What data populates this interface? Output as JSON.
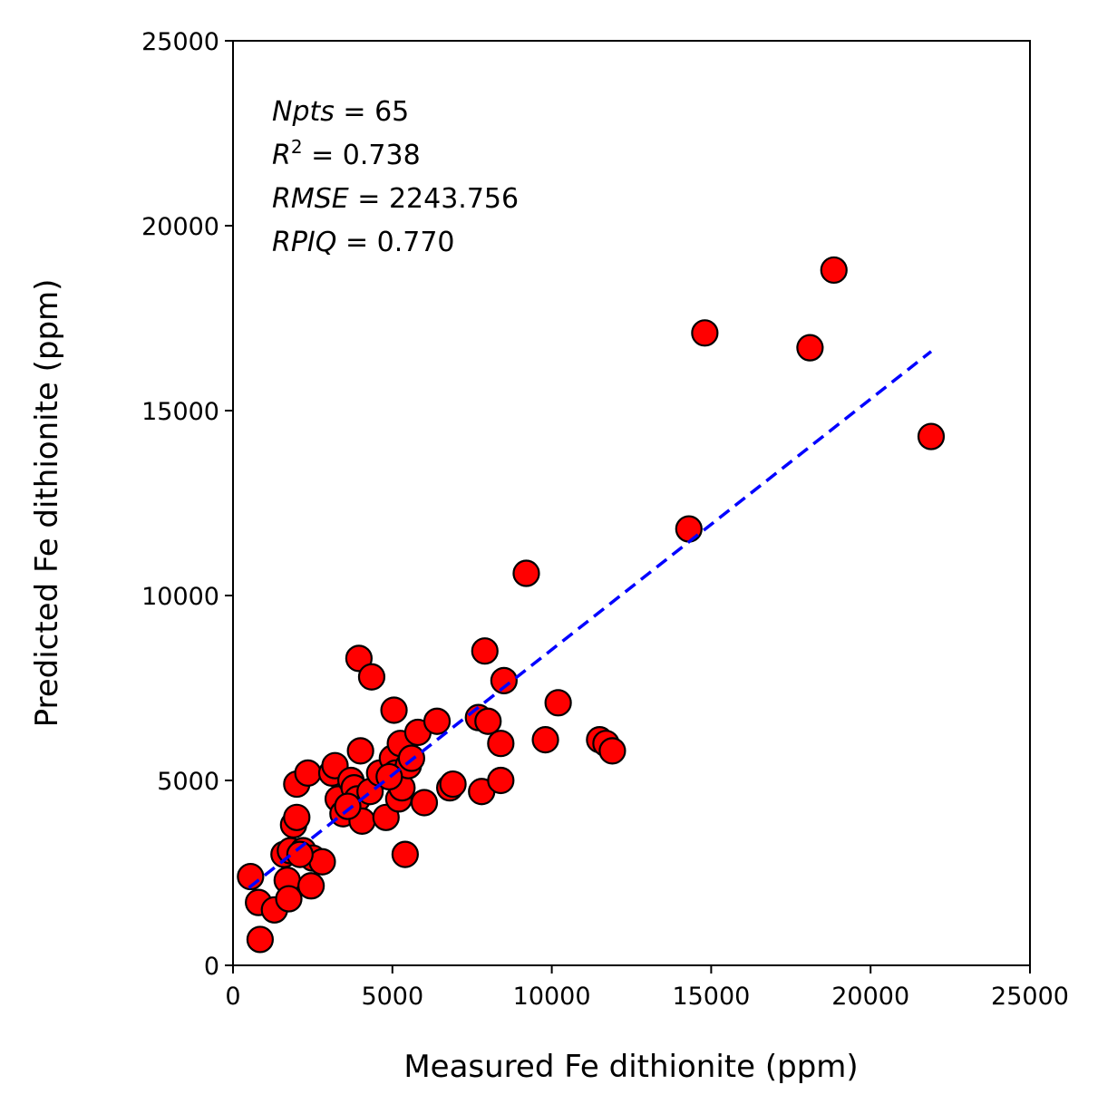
{
  "chart_data": {
    "type": "scatter",
    "xlabel": "Measured Fe dithionite (ppm)",
    "ylabel": "Predicted Fe dithionite (ppm)",
    "xlim": [
      0,
      25000
    ],
    "ylim": [
      0,
      25000
    ],
    "xticks": [
      "0",
      "5000",
      "10000",
      "15000",
      "20000",
      "25000"
    ],
    "yticks": [
      "0",
      "5000",
      "10000",
      "15000",
      "20000",
      "25000"
    ],
    "grid": false,
    "stats": [
      {
        "name": "Npts",
        "value": "65",
        "sup": ""
      },
      {
        "name": "R",
        "value": "0.738",
        "sup": "2"
      },
      {
        "name": "RMSE",
        "value": "2243.756",
        "sup": ""
      },
      {
        "name": "RPIQ",
        "value": "0.770",
        "sup": ""
      }
    ],
    "marker_color": "#ff0000",
    "marker_edge": "#000000",
    "fit_line_color": "#0000ff",
    "fit_line": {
      "x": [
        500,
        21900
      ],
      "y": [
        2100,
        16600
      ]
    },
    "points": [
      [
        550,
        2400
      ],
      [
        800,
        1700
      ],
      [
        850,
        700
      ],
      [
        1300,
        1500
      ],
      [
        1600,
        3000
      ],
      [
        1700,
        2300
      ],
      [
        1750,
        1800
      ],
      [
        1800,
        3100
      ],
      [
        1900,
        3800
      ],
      [
        2000,
        4900
      ],
      [
        2000,
        4000
      ],
      [
        2200,
        3100
      ],
      [
        2350,
        5200
      ],
      [
        2450,
        2150
      ],
      [
        2500,
        2900
      ],
      [
        2800,
        2800
      ],
      [
        3100,
        5200
      ],
      [
        3200,
        5400
      ],
      [
        3300,
        4500
      ],
      [
        3450,
        4100
      ],
      [
        3700,
        5000
      ],
      [
        3800,
        4800
      ],
      [
        3900,
        4500
      ],
      [
        3950,
        8300
      ],
      [
        4000,
        5800
      ],
      [
        4050,
        3900
      ],
      [
        4300,
        4700
      ],
      [
        4350,
        7800
      ],
      [
        4600,
        5200
      ],
      [
        4800,
        4000
      ],
      [
        5000,
        5600
      ],
      [
        5050,
        6900
      ],
      [
        5100,
        5200
      ],
      [
        5200,
        4500
      ],
      [
        5250,
        6000
      ],
      [
        5300,
        4800
      ],
      [
        5400,
        3000
      ],
      [
        5500,
        5400
      ],
      [
        5600,
        5600
      ],
      [
        5800,
        6300
      ],
      [
        6000,
        4400
      ],
      [
        6400,
        6600
      ],
      [
        6800,
        4800
      ],
      [
        7700,
        6700
      ],
      [
        7800,
        4700
      ],
      [
        7900,
        8500
      ],
      [
        8000,
        6600
      ],
      [
        8400,
        6000
      ],
      [
        8400,
        5000
      ],
      [
        8500,
        7700
      ],
      [
        9200,
        10600
      ],
      [
        9800,
        6100
      ],
      [
        10200,
        7100
      ],
      [
        11500,
        6100
      ],
      [
        11700,
        6000
      ],
      [
        11900,
        5800
      ],
      [
        14300,
        11800
      ],
      [
        14800,
        17100
      ],
      [
        18100,
        16700
      ],
      [
        18850,
        18800
      ],
      [
        21900,
        14300
      ],
      [
        3600,
        4300
      ],
      [
        4900,
        5100
      ],
      [
        2100,
        3000
      ],
      [
        6900,
        4900
      ]
    ]
  }
}
